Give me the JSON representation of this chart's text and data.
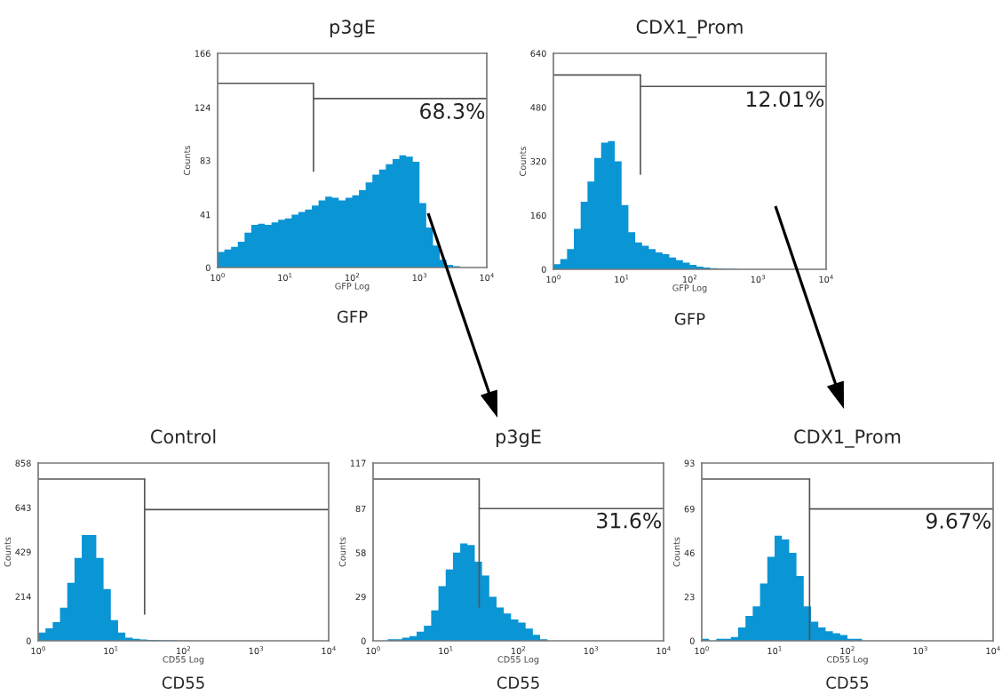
{
  "chart_data": [
    {
      "type": "histogram",
      "title": "p3gE",
      "xlabel": "GFP Log",
      "ylabel": "Counts",
      "annotations": [
        "68.3%",
        "GFP"
      ],
      "color": "#0a95d5",
      "log": "x",
      "bins": [
        1,
        1.259,
        1.585,
        1.995,
        2.512,
        3.162,
        3.981,
        5.012,
        6.31,
        7.943,
        10,
        12.59,
        15.85,
        19.95,
        25.12,
        31.62,
        39.81,
        50.12,
        63.1,
        79.43,
        100,
        125.9,
        158.5,
        199.5,
        251.2,
        316.2,
        398.1,
        501.2,
        631,
        794.3,
        1000,
        1259,
        1585,
        1995,
        2512,
        3162,
        3981,
        5012,
        6310,
        7943,
        10000
      ],
      "values": [
        12,
        14,
        16,
        20,
        27,
        33,
        34,
        33,
        35,
        37,
        38,
        41,
        43,
        45,
        48,
        52,
        55,
        54,
        52,
        54,
        56,
        60,
        66,
        72,
        76,
        80,
        84,
        87,
        86,
        82,
        50,
        31,
        17,
        6,
        2,
        1,
        0,
        0,
        0,
        0
      ],
      "xlim": [
        1,
        10000
      ],
      "xticks": [
        {
          "value": 1,
          "label": "10$^{0}$"
        },
        {
          "value": 10,
          "label": "10$^{1}$"
        },
        {
          "value": 100,
          "label": "10$^{2}$"
        },
        {
          "value": 1000,
          "label": "10$^{3}$"
        },
        {
          "value": 10000,
          "label": "10$^{4}$"
        }
      ],
      "ylim": [
        0,
        166
      ],
      "yticks": [
        0,
        41,
        83,
        124,
        166
      ],
      "ref_lines": [
        {
          "axis": "x",
          "value": 26.6,
          "color": "#555555"
        },
        {
          "axis": "y",
          "value": 131,
          "color": "#555555"
        }
      ]
    },
    {
      "type": "histogram",
      "title": "CDX1_Prom",
      "xlabel": "GFP Log",
      "ylabel": "Counts",
      "annotations": [
        "12.01%",
        "GFP"
      ],
      "color": "#0a95d5",
      "log": "x",
      "bins": [
        1,
        1.259,
        1.585,
        1.995,
        2.512,
        3.162,
        3.981,
        5.012,
        6.31,
        7.943,
        10,
        12.59,
        15.85,
        19.95,
        25.12,
        31.62,
        39.81,
        50.12,
        63.1,
        79.43,
        100,
        125.9,
        158.5,
        199.5,
        251.2,
        316.2,
        398.1,
        501.2,
        631,
        794.3,
        1000,
        1259,
        1585,
        1995,
        2512,
        3162,
        3981,
        5012,
        6310,
        7943,
        10000
      ],
      "values": [
        15,
        30,
        60,
        120,
        200,
        260,
        330,
        375,
        380,
        320,
        190,
        110,
        80,
        70,
        60,
        50,
        45,
        35,
        27,
        20,
        13,
        8,
        5,
        3,
        2,
        1,
        1,
        0,
        0,
        0,
        0,
        0,
        0,
        0,
        0,
        0,
        0,
        0,
        0,
        0
      ],
      "xlim": [
        1,
        10000
      ],
      "xticks": [
        {
          "value": 1,
          "label": "10$^{0}$"
        },
        {
          "value": 10,
          "label": "10$^{1}$"
        },
        {
          "value": 100,
          "label": "10$^{2}$"
        },
        {
          "value": 1000,
          "label": "10$^{3}$"
        },
        {
          "value": 10000,
          "label": "10$^{4}$"
        }
      ],
      "ylim": [
        0,
        640
      ],
      "yticks": [
        0,
        160,
        320,
        480,
        640
      ],
      "ref_lines": [
        {
          "axis": "x",
          "value": 18.9,
          "color": "#555555"
        },
        {
          "axis": "y",
          "value": 542,
          "color": "#555555"
        }
      ]
    },
    {
      "type": "histogram",
      "title": "Control",
      "xlabel": "CD55 Log",
      "ylabel": "Counts",
      "annotations": [
        "CD55"
      ],
      "color": "#0a95d5",
      "log": "x",
      "bins": [
        1,
        1.259,
        1.585,
        1.995,
        2.512,
        3.162,
        3.981,
        5.012,
        6.31,
        7.943,
        10,
        12.59,
        15.85,
        19.95,
        25.12,
        31.62,
        39.81,
        50.12,
        63.1,
        79.43,
        100,
        125.9,
        158.5,
        199.5,
        251.2,
        316.2,
        398.1,
        501.2,
        631,
        794.3,
        1000,
        1259,
        1585,
        1995,
        2512,
        3162,
        3981,
        5012,
        6310,
        7943,
        10000
      ],
      "values": [
        40,
        60,
        90,
        160,
        280,
        400,
        510,
        510,
        400,
        250,
        100,
        40,
        15,
        10,
        6,
        4,
        3,
        2,
        2,
        1,
        1,
        0,
        0,
        0,
        0,
        0,
        0,
        0,
        0,
        0,
        0,
        0,
        0,
        0,
        0,
        0,
        0,
        0,
        0,
        0
      ],
      "xlim": [
        1,
        10000
      ],
      "xticks": [
        {
          "value": 1,
          "label": "10$^{0}$"
        },
        {
          "value": 10,
          "label": "10$^{1}$"
        },
        {
          "value": 100,
          "label": "10$^{2}$"
        },
        {
          "value": 1000,
          "label": "10$^{3}$"
        },
        {
          "value": 10000,
          "label": "10$^{4}$"
        }
      ],
      "ylim": [
        0,
        858
      ],
      "yticks": [
        0,
        214,
        429,
        643,
        858
      ],
      "ref_lines": [
        {
          "axis": "x",
          "value": 29.2,
          "color": "#555555"
        },
        {
          "axis": "y",
          "value": 633,
          "color": "#555555"
        }
      ]
    },
    {
      "type": "histogram",
      "title": "p3gE",
      "xlabel": "CD55 Log",
      "ylabel": "Counts",
      "annotations": [
        "31.6%",
        "CD55"
      ],
      "color": "#0a95d5",
      "log": "x",
      "bins": [
        1,
        1.259,
        1.585,
        1.995,
        2.512,
        3.162,
        3.981,
        5.012,
        6.31,
        7.943,
        10,
        12.59,
        15.85,
        19.95,
        25.12,
        31.62,
        39.81,
        50.12,
        63.1,
        79.43,
        100,
        125.9,
        158.5,
        199.5,
        251.2,
        316.2,
        398.1,
        501.2,
        631,
        794.3,
        1000,
        1259,
        1585,
        1995,
        2512,
        3162,
        3981,
        5012,
        6310,
        7943,
        10000
      ],
      "values": [
        0,
        0,
        1,
        1,
        2,
        3,
        6,
        10,
        20,
        36,
        47,
        58,
        64,
        63,
        52,
        43,
        29,
        22,
        18,
        14,
        12,
        8,
        4,
        1,
        0,
        0,
        0,
        0,
        0,
        0,
        0,
        0,
        0,
        0,
        0,
        0,
        0,
        0,
        0,
        0
      ],
      "xlim": [
        1,
        10000
      ],
      "xticks": [
        {
          "value": 1,
          "label": "10$^{0}$"
        },
        {
          "value": 10,
          "label": "10$^{1}$"
        },
        {
          "value": 100,
          "label": "10$^{2}$"
        },
        {
          "value": 1000,
          "label": "10$^{3}$"
        },
        {
          "value": 10000,
          "label": "10$^{4}$"
        }
      ],
      "ylim": [
        0,
        117
      ],
      "yticks": [
        0,
        29,
        58,
        87,
        117
      ],
      "ref_lines": [
        {
          "axis": "x",
          "value": 28.9,
          "color": "#555555"
        },
        {
          "axis": "y",
          "value": 87,
          "color": "#555555"
        }
      ]
    },
    {
      "type": "histogram",
      "title": "CDX1_Prom",
      "xlabel": "CD55 Log",
      "ylabel": "Counts",
      "annotations": [
        "9.67%",
        "CD55"
      ],
      "color": "#0a95d5",
      "log": "x",
      "bins": [
        1,
        1.259,
        1.585,
        1.995,
        2.512,
        3.162,
        3.981,
        5.012,
        6.31,
        7.943,
        10,
        12.59,
        15.85,
        19.95,
        25.12,
        31.62,
        39.81,
        50.12,
        63.1,
        79.43,
        100,
        125.9,
        158.5,
        199.5,
        251.2,
        316.2,
        398.1,
        501.2,
        631,
        794.3,
        1000,
        1259,
        1585,
        1995,
        2512,
        3162,
        3981,
        5012,
        6310,
        7943,
        10000
      ],
      "values": [
        1,
        0,
        1,
        1,
        2,
        7,
        13,
        18,
        30,
        44,
        55,
        53,
        46,
        34,
        18,
        10,
        7,
        5,
        4,
        3,
        1,
        1,
        0,
        0,
        0,
        0,
        0,
        0,
        0,
        0,
        0,
        0,
        0,
        0,
        0,
        0,
        0,
        0,
        0,
        0
      ],
      "xlim": [
        1,
        10000
      ],
      "xticks": [
        {
          "value": 1,
          "label": "10$^{0}$"
        },
        {
          "value": 10,
          "label": "10$^{1}$"
        },
        {
          "value": 100,
          "label": "10$^{2}$"
        },
        {
          "value": 1000,
          "label": "10$^{3}$"
        },
        {
          "value": 10000,
          "label": "10$^{4}$"
        }
      ],
      "ylim": [
        0,
        93
      ],
      "yticks": [
        0,
        23,
        46,
        69,
        93
      ],
      "ref_lines": [
        {
          "axis": "x",
          "value": 30.2,
          "color": "#555555"
        },
        {
          "axis": "y",
          "value": 69,
          "color": "#555555"
        }
      ]
    }
  ]
}
